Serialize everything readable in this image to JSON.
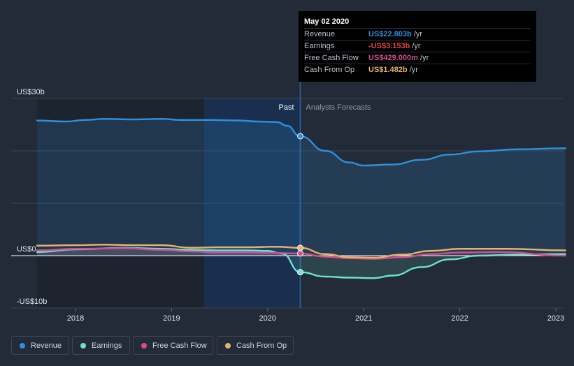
{
  "chart_data": {
    "type": "line",
    "x_ticks": [
      "2018",
      "2019",
      "2020",
      "2021",
      "2022",
      "2023"
    ],
    "y_ticks": [
      {
        "value": 30,
        "label": "US$30b"
      },
      {
        "value": 0,
        "label": "US$0"
      },
      {
        "value": -10,
        "label": "-US$10b"
      }
    ],
    "xlim": [
      2017.65,
      2023.1
    ],
    "ylim": [
      -10,
      30
    ],
    "past_label": "Past",
    "forecast_label": "Analysts Forecasts",
    "divider_x": 2020.34,
    "past_band_start": 2019.34,
    "grid": true,
    "series": [
      {
        "name": "Revenue",
        "color": "#2d8fdb",
        "points": [
          [
            2017.6,
            25.8
          ],
          [
            2017.9,
            25.6
          ],
          [
            2018.1,
            25.9
          ],
          [
            2018.3,
            26.1
          ],
          [
            2018.6,
            26.0
          ],
          [
            2018.9,
            26.1
          ],
          [
            2019.1,
            25.9
          ],
          [
            2019.4,
            25.9
          ],
          [
            2019.7,
            25.8
          ],
          [
            2019.9,
            25.6
          ],
          [
            2020.1,
            25.5
          ],
          [
            2020.2,
            24.8
          ],
          [
            2020.34,
            22.803
          ],
          [
            2020.6,
            20.0
          ],
          [
            2020.85,
            17.8
          ],
          [
            2021.0,
            17.2
          ],
          [
            2021.3,
            17.4
          ],
          [
            2021.6,
            18.3
          ],
          [
            2021.9,
            19.3
          ],
          [
            2022.2,
            19.9
          ],
          [
            2022.6,
            20.3
          ],
          [
            2023.1,
            20.5
          ]
        ],
        "fill": true
      },
      {
        "name": "Earnings",
        "color": "#6ee0d0",
        "points": [
          [
            2017.6,
            0.7
          ],
          [
            2018.0,
            1.2
          ],
          [
            2018.5,
            1.5
          ],
          [
            2018.9,
            1.3
          ],
          [
            2019.2,
            1.1
          ],
          [
            2019.5,
            1.0
          ],
          [
            2019.8,
            1.0
          ],
          [
            2020.0,
            0.9
          ],
          [
            2020.15,
            0.4
          ],
          [
            2020.34,
            -3.153
          ],
          [
            2020.6,
            -4.0
          ],
          [
            2020.85,
            -4.2
          ],
          [
            2021.1,
            -4.3
          ],
          [
            2021.3,
            -3.8
          ],
          [
            2021.6,
            -2.2
          ],
          [
            2021.9,
            -0.7
          ],
          [
            2022.2,
            0.0
          ],
          [
            2022.6,
            0.2
          ],
          [
            2023.1,
            0.3
          ]
        ],
        "fill": true
      },
      {
        "name": "Free Cash Flow",
        "color": "#d54e89",
        "points": [
          [
            2017.6,
            1.0
          ],
          [
            2018.0,
            1.3
          ],
          [
            2018.5,
            1.4
          ],
          [
            2018.9,
            1.1
          ],
          [
            2019.2,
            0.8
          ],
          [
            2019.5,
            0.6
          ],
          [
            2019.8,
            0.6
          ],
          [
            2020.1,
            0.5
          ],
          [
            2020.34,
            0.429
          ],
          [
            2020.6,
            -0.2
          ],
          [
            2020.85,
            -0.5
          ],
          [
            2021.1,
            -0.6
          ],
          [
            2021.4,
            -0.3
          ],
          [
            2021.7,
            0.3
          ],
          [
            2022.0,
            0.6
          ],
          [
            2022.4,
            0.7
          ],
          [
            2023.1,
            0.0
          ]
        ],
        "fill": true
      },
      {
        "name": "Cash From Op",
        "color": "#e3b36a",
        "points": [
          [
            2017.6,
            1.9
          ],
          [
            2018.0,
            2.0
          ],
          [
            2018.3,
            2.1
          ],
          [
            2018.6,
            2.0
          ],
          [
            2018.9,
            2.0
          ],
          [
            2019.2,
            1.5
          ],
          [
            2019.5,
            1.6
          ],
          [
            2019.8,
            1.6
          ],
          [
            2020.1,
            1.7
          ],
          [
            2020.34,
            1.482
          ],
          [
            2020.6,
            0.3
          ],
          [
            2020.85,
            -0.3
          ],
          [
            2021.1,
            -0.4
          ],
          [
            2021.4,
            0.2
          ],
          [
            2021.7,
            0.9
          ],
          [
            2022.0,
            1.3
          ],
          [
            2022.5,
            1.3
          ],
          [
            2023.1,
            1.0
          ]
        ],
        "fill": false
      }
    ]
  },
  "tooltip": {
    "date": "May 02 2020",
    "rows": [
      {
        "label": "Revenue",
        "value": "US$22.803b",
        "unit": "/yr",
        "color": "#2d8fdb"
      },
      {
        "label": "Earnings",
        "value": "-US$3.153b",
        "unit": "/yr",
        "color": "#e5443e"
      },
      {
        "label": "Free Cash Flow",
        "value": "US$429.000m",
        "unit": "/yr",
        "color": "#d54e89"
      },
      {
        "label": "Cash From Op",
        "value": "US$1.482b",
        "unit": "/yr",
        "color": "#e3b36a"
      }
    ]
  },
  "legend": [
    {
      "label": "Revenue",
      "color": "#2d8fdb"
    },
    {
      "label": "Earnings",
      "color": "#6ee0d0"
    },
    {
      "label": "Free Cash Flow",
      "color": "#d54e89"
    },
    {
      "label": "Cash From Op",
      "color": "#e3b36a"
    }
  ]
}
